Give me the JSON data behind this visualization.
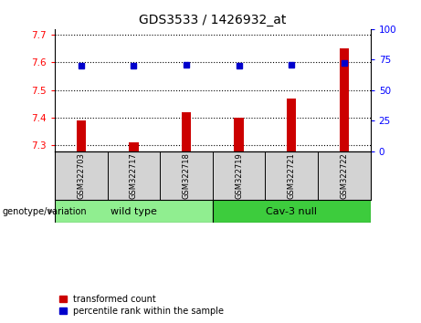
{
  "title": "GDS3533 / 1426932_at",
  "samples": [
    "GSM322703",
    "GSM322717",
    "GSM322718",
    "GSM322719",
    "GSM322721",
    "GSM322722"
  ],
  "transformed_counts": [
    7.39,
    7.31,
    7.42,
    7.4,
    7.47,
    7.65
  ],
  "percentile_ranks": [
    70,
    70,
    71,
    70,
    71,
    72
  ],
  "groups": [
    {
      "label": "wild type",
      "indices": [
        0,
        1,
        2
      ],
      "color": "#90ee90"
    },
    {
      "label": "Cav-3 null",
      "indices": [
        3,
        4,
        5
      ],
      "color": "#3dcc3d"
    }
  ],
  "ylim_left": [
    7.28,
    7.72
  ],
  "ylim_right": [
    0,
    100
  ],
  "yticks_left": [
    7.3,
    7.4,
    7.5,
    7.6,
    7.7
  ],
  "yticks_right": [
    0,
    25,
    50,
    75,
    100
  ],
  "bar_color": "#cc0000",
  "dot_color": "#0000cc",
  "bar_bottom": 7.28,
  "bar_width": 0.18,
  "legend_items": [
    {
      "label": "transformed count",
      "color": "#cc0000"
    },
    {
      "label": "percentile rank within the sample",
      "color": "#0000cc"
    }
  ],
  "genotype_label": "genotype/variation",
  "bg_color_label": "#d3d3d3",
  "dot_size": 4
}
